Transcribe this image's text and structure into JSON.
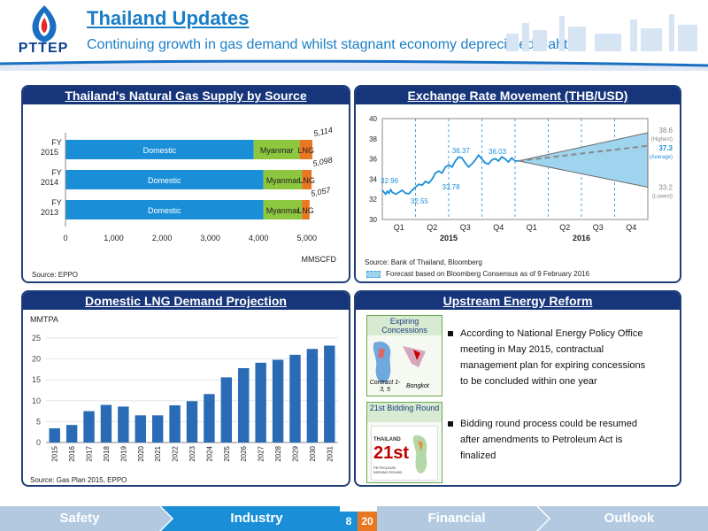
{
  "header": {
    "logo_text": "PTTEP",
    "title": "Thailand Updates",
    "subtitle": "Continuing growth in gas demand whilst stagnant economy depreciated Baht"
  },
  "gas_supply": {
    "title": "Thailand's Natural Gas Supply by Source",
    "source": "Source: EPPO",
    "unit": "MMSCFD",
    "ticks": [
      "0",
      "1,000",
      "2,000",
      "3,000",
      "4,000",
      "5,000"
    ],
    "rows": [
      {
        "label1": "FY",
        "label2": "2015",
        "total": "5,114",
        "domestic": 3900,
        "myanmar": 950,
        "lng": 264,
        "d_label": "Domestic",
        "m_label": "Myanmar",
        "l_label": "LNG"
      },
      {
        "label1": "FY",
        "label2": "2014",
        "total": "5,098",
        "domestic": 4100,
        "myanmar": 800,
        "lng": 198,
        "d_label": "Domestic",
        "m_label": "Myanmar",
        "l_label": "LNG"
      },
      {
        "label1": "FY",
        "label2": "2013",
        "total": "5,057",
        "domestic": 4100,
        "myanmar": 800,
        "lng": 157,
        "d_label": "Domestic",
        "m_label": "Myanmar",
        "l_label": "LNG"
      }
    ]
  },
  "exchange": {
    "title": "Exchange Rate Movement (THB/USD)",
    "source": "Source: Bank of Thailand, Bloomberg",
    "forecast_note": "Forecast based on Bloomberg Consensus as of  9 February 2016",
    "yticks": [
      "40",
      "38",
      "36",
      "34",
      "32",
      "30"
    ],
    "quarters": [
      "Q1",
      "Q2",
      "Q3",
      "Q4",
      "Q1",
      "Q2",
      "Q3",
      "Q4"
    ],
    "years": [
      "2015",
      "2016"
    ],
    "labels": {
      "v1": "32.96",
      "v2": "32.55",
      "v3": "33.78",
      "v4": "36.37",
      "v5": "36.03"
    },
    "forecast": {
      "high": "38.6",
      "high_l": "(Highest)",
      "avg": "37.3",
      "avg_l": "(Average)",
      "low": "33.2",
      "low_l": "(Lowest)"
    }
  },
  "lng": {
    "title": "Domestic LNG Demand Projection",
    "unit": "MMTPA",
    "source": "Source: Gas Plan 2015, EPPO",
    "yticks": [
      "25",
      "20",
      "15",
      "10",
      "5",
      "0"
    ]
  },
  "reform": {
    "title": "Upstream Energy Reform",
    "box1_title": "Expiring Concessions",
    "box1_contract": "Contract 1-3, 5",
    "box1_bongkot": "Bongkot",
    "box2_title": "21st Bidding Round",
    "poster_top": "THAILAND",
    "poster_big": "21st",
    "poster_bottom": "PETROLEUM BIDDING ROUND",
    "bullet1_l1": "According to National Energy Policy Office",
    "bullet1_l2": "meeting in May 2015, contractual",
    "bullet1_l3": "management plan for expiring concessions",
    "bullet1_l4": "to be concluded within one year",
    "bullet2_l1": "Bidding round process could be resumed",
    "bullet2_l2": "after amendments to Petroleum Act is",
    "bullet2_l3": "finalized"
  },
  "footer": {
    "safety": "Safety",
    "industry": "Industry",
    "page": "8",
    "total": "20",
    "financial": "Financial",
    "outlook": "Outlook"
  },
  "chart_data": [
    {
      "type": "bar",
      "title": "Thailand's Natural Gas Supply by Source",
      "xlabel": "MMSCFD",
      "categories": [
        "FY 2015",
        "FY 2014",
        "FY 2013"
      ],
      "series": [
        {
          "name": "Domestic",
          "values": [
            3900,
            4100,
            4100
          ]
        },
        {
          "name": "Myanmar",
          "values": [
            950,
            800,
            800
          ]
        },
        {
          "name": "LNG",
          "values": [
            264,
            198,
            157
          ]
        }
      ],
      "totals": [
        5114,
        5098,
        5057
      ],
      "xlim": [
        0,
        5500
      ],
      "colors": [
        "#1a8fd8",
        "#8dc63f",
        "#e87722"
      ]
    },
    {
      "type": "line",
      "title": "Exchange Rate Movement (THB/USD)",
      "ylim": [
        30,
        40
      ],
      "x": [
        "2015 Q1",
        "2015 Q2",
        "2015 Q3",
        "2015 Q4",
        "2016 Q1",
        "2016 Q2",
        "2016 Q3",
        "2016 Q4"
      ],
      "annotations": [
        32.96,
        32.55,
        33.78,
        36.37,
        36.03
      ],
      "forecast": {
        "high": 38.6,
        "average": 37.3,
        "low": 33.2
      }
    },
    {
      "type": "bar",
      "title": "Domestic LNG Demand Projection",
      "ylabel": "MMTPA",
      "ylim": [
        0,
        25
      ],
      "categories": [
        "2015",
        "2016",
        "2017",
        "2018",
        "2019",
        "2020",
        "2021",
        "2022",
        "2023",
        "2024",
        "2025",
        "2026",
        "2027",
        "2028",
        "2029",
        "2030",
        "2031"
      ],
      "values": [
        3.4,
        4.2,
        7.5,
        9.0,
        8.6,
        6.5,
        6.5,
        8.9,
        9.9,
        11.6,
        15.6,
        17.8,
        19.1,
        19.8,
        21.0,
        22.4,
        23.2
      ],
      "colors": [
        "#2a6bb5"
      ]
    }
  ]
}
